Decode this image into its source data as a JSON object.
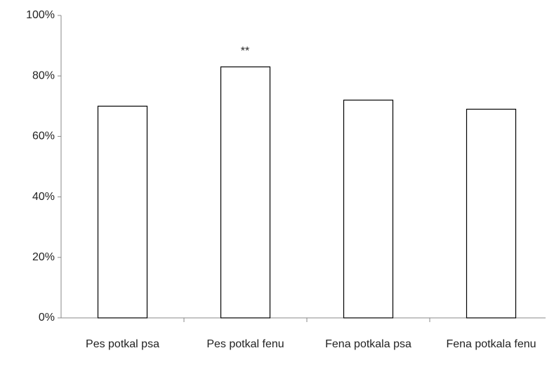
{
  "chart_data": {
    "type": "bar",
    "categories": [
      "Pes potkal psa",
      "Pes potkal fenu",
      "Fena potkala psa",
      "Fena potkala fenu"
    ],
    "values": [
      70,
      83,
      72,
      69
    ],
    "color": "#ffffff",
    "annotation": "**",
    "ylim": [
      0,
      100
    ],
    "yticks": [
      {
        "value": 0,
        "label": "0%"
      },
      {
        "value": 20,
        "label": "20%"
      },
      {
        "value": 40,
        "label": "40%"
      },
      {
        "value": 60,
        "label": "60%"
      },
      {
        "value": 80,
        "label": "80%"
      },
      {
        "value": 100,
        "label": "100%"
      }
    ],
    "grid": false
  }
}
